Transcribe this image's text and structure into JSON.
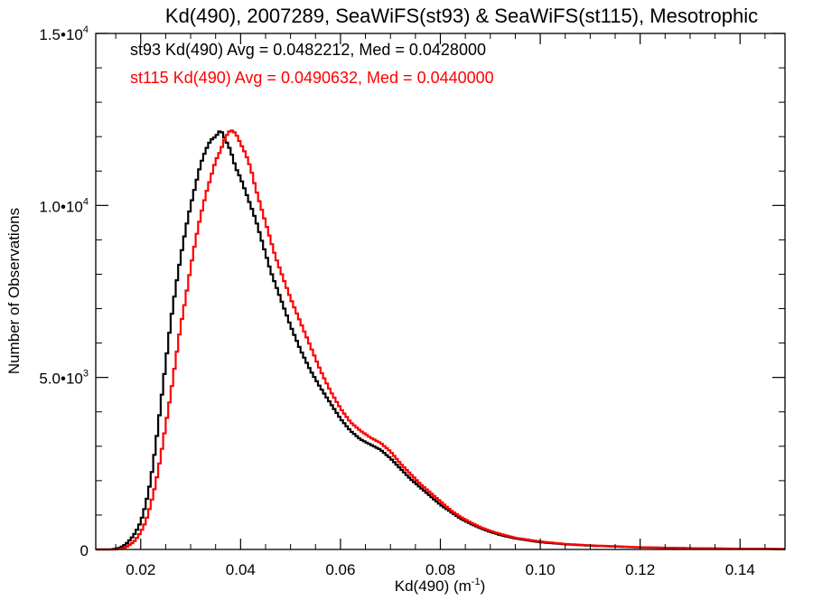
{
  "chart_data": {
    "type": "histogram-step",
    "title": "Kd(490), 2007289, SeaWiFS(st93) & SeaWiFS(st115), Mesotrophic",
    "xlabel_main": "Kd(490) (m",
    "xlabel_sup": "-1",
    "xlabel_end": ")",
    "ylabel": "Number of Observations",
    "xlim": [
      0.011,
      0.149
    ],
    "ylim": [
      0,
      15000
    ],
    "x_ticks": [
      {
        "value": 0.02,
        "label": "0.02"
      },
      {
        "value": 0.04,
        "label": "0.04"
      },
      {
        "value": 0.06,
        "label": "0.06"
      },
      {
        "value": 0.08,
        "label": "0.08"
      },
      {
        "value": 0.1,
        "label": "0.10"
      },
      {
        "value": 0.12,
        "label": "0.12"
      },
      {
        "value": 0.14,
        "label": "0.14"
      }
    ],
    "y_ticks": [
      {
        "value": 0,
        "mant": "0",
        "exp": ""
      },
      {
        "value": 5000,
        "mant": "5.0•10",
        "exp": "3"
      },
      {
        "value": 10000,
        "mant": "1.0•10",
        "exp": "4"
      },
      {
        "value": 15000,
        "mant": "1.5•10",
        "exp": "4"
      }
    ],
    "annotations": [
      {
        "text": "st93 Kd(490) Avg = 0.0482212, Med = 0.0428000",
        "color": "#000000"
      },
      {
        "text": "st115 Kd(490) Avg = 0.0490632, Med = 0.0440000",
        "color": "#ff0000"
      }
    ],
    "bin_width": 0.0005,
    "series": [
      {
        "name": "st93",
        "color": "#000000",
        "points": [
          [
            0.014,
            0
          ],
          [
            0.015,
            20
          ],
          [
            0.016,
            60
          ],
          [
            0.017,
            150
          ],
          [
            0.018,
            300
          ],
          [
            0.019,
            500
          ],
          [
            0.02,
            800
          ],
          [
            0.021,
            1300
          ],
          [
            0.022,
            2000
          ],
          [
            0.023,
            3000
          ],
          [
            0.024,
            4200
          ],
          [
            0.025,
            5400
          ],
          [
            0.026,
            6600
          ],
          [
            0.027,
            7600
          ],
          [
            0.028,
            8500
          ],
          [
            0.029,
            9300
          ],
          [
            0.03,
            10000
          ],
          [
            0.031,
            10600
          ],
          [
            0.032,
            11200
          ],
          [
            0.033,
            11600
          ],
          [
            0.034,
            11900
          ],
          [
            0.035,
            12000
          ],
          [
            0.036,
            12200
          ],
          [
            0.037,
            11900
          ],
          [
            0.038,
            11600
          ],
          [
            0.039,
            11100
          ],
          [
            0.04,
            10800
          ],
          [
            0.041,
            10400
          ],
          [
            0.042,
            10000
          ],
          [
            0.043,
            9600
          ],
          [
            0.044,
            9100
          ],
          [
            0.045,
            8600
          ],
          [
            0.046,
            8100
          ],
          [
            0.047,
            7700
          ],
          [
            0.048,
            7300
          ],
          [
            0.049,
            6900
          ],
          [
            0.05,
            6500
          ],
          [
            0.052,
            5800
          ],
          [
            0.054,
            5200
          ],
          [
            0.056,
            4700
          ],
          [
            0.058,
            4250
          ],
          [
            0.06,
            3800
          ],
          [
            0.062,
            3450
          ],
          [
            0.064,
            3200
          ],
          [
            0.066,
            3050
          ],
          [
            0.068,
            2900
          ],
          [
            0.07,
            2650
          ],
          [
            0.072,
            2350
          ],
          [
            0.074,
            2050
          ],
          [
            0.076,
            1800
          ],
          [
            0.078,
            1550
          ],
          [
            0.08,
            1300
          ],
          [
            0.082,
            1100
          ],
          [
            0.084,
            900
          ],
          [
            0.086,
            750
          ],
          [
            0.088,
            620
          ],
          [
            0.09,
            510
          ],
          [
            0.092,
            420
          ],
          [
            0.095,
            320
          ],
          [
            0.1,
            210
          ],
          [
            0.105,
            150
          ],
          [
            0.11,
            110
          ],
          [
            0.12,
            60
          ],
          [
            0.13,
            35
          ],
          [
            0.14,
            20
          ],
          [
            0.149,
            12
          ]
        ]
      },
      {
        "name": "st115",
        "color": "#ff0000",
        "points": [
          [
            0.015,
            0
          ],
          [
            0.016,
            20
          ],
          [
            0.017,
            60
          ],
          [
            0.018,
            150
          ],
          [
            0.019,
            280
          ],
          [
            0.02,
            500
          ],
          [
            0.021,
            800
          ],
          [
            0.022,
            1300
          ],
          [
            0.023,
            1900
          ],
          [
            0.024,
            2700
          ],
          [
            0.025,
            3600
          ],
          [
            0.026,
            4500
          ],
          [
            0.027,
            5500
          ],
          [
            0.028,
            6500
          ],
          [
            0.029,
            7300
          ],
          [
            0.03,
            8200
          ],
          [
            0.031,
            9000
          ],
          [
            0.032,
            9700
          ],
          [
            0.033,
            10300
          ],
          [
            0.034,
            10800
          ],
          [
            0.035,
            11300
          ],
          [
            0.036,
            11600
          ],
          [
            0.037,
            12000
          ],
          [
            0.038,
            12200
          ],
          [
            0.039,
            12100
          ],
          [
            0.04,
            11800
          ],
          [
            0.041,
            11500
          ],
          [
            0.042,
            11100
          ],
          [
            0.043,
            10500
          ],
          [
            0.044,
            10000
          ],
          [
            0.045,
            9500
          ],
          [
            0.046,
            9000
          ],
          [
            0.047,
            8500
          ],
          [
            0.048,
            8100
          ],
          [
            0.049,
            7700
          ],
          [
            0.05,
            7300
          ],
          [
            0.052,
            6600
          ],
          [
            0.054,
            5900
          ],
          [
            0.056,
            5200
          ],
          [
            0.058,
            4600
          ],
          [
            0.06,
            4100
          ],
          [
            0.062,
            3700
          ],
          [
            0.064,
            3450
          ],
          [
            0.066,
            3250
          ],
          [
            0.068,
            3100
          ],
          [
            0.07,
            2850
          ],
          [
            0.072,
            2500
          ],
          [
            0.074,
            2200
          ],
          [
            0.076,
            1900
          ],
          [
            0.078,
            1650
          ],
          [
            0.08,
            1400
          ],
          [
            0.082,
            1150
          ],
          [
            0.084,
            950
          ],
          [
            0.086,
            790
          ],
          [
            0.088,
            650
          ],
          [
            0.09,
            540
          ],
          [
            0.092,
            450
          ],
          [
            0.095,
            340
          ],
          [
            0.1,
            230
          ],
          [
            0.105,
            160
          ],
          [
            0.11,
            120
          ],
          [
            0.12,
            65
          ],
          [
            0.13,
            38
          ],
          [
            0.14,
            22
          ],
          [
            0.149,
            13
          ]
        ]
      }
    ]
  }
}
